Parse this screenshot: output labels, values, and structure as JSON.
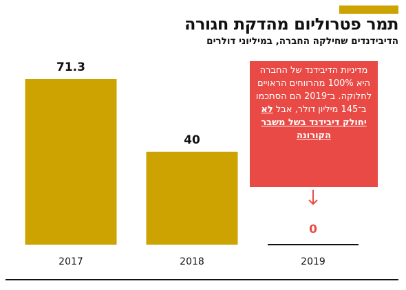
{
  "header": {
    "title": "תמר פטרוליום מהדקת חגורה",
    "subtitle": "הדיבידנדים שחילקה החברה, במיליוני דולרים"
  },
  "callout": {
    "text_plain": "מדיניות הדיבידנד של החברה היא 100% מהרווחים הראויים לחלוקה. ב־2019 הם הסתכמו ב־145 מיליון דולר, אבל",
    "text_highlight": "לא יחולק דיבידנד בשל משבר הקורונה"
  },
  "colors": {
    "accent": "#cca300",
    "bar": "#cca300",
    "zero_label": "#e94a45",
    "callout_bg": "#e94a45"
  },
  "chart_data": {
    "type": "bar",
    "categories": [
      "2017",
      "2018",
      "2019"
    ],
    "values": [
      71.3,
      40,
      0
    ],
    "value_labels": [
      "71.3",
      "40",
      "0"
    ],
    "title": "תמר פטרוליום מהדקת חגורה",
    "subtitle": "הדיבידנדים שחילקה החברה, במיליוני דולרים",
    "xlabel": "",
    "ylabel": "",
    "ylim": [
      0,
      71.3
    ],
    "grid": false
  }
}
